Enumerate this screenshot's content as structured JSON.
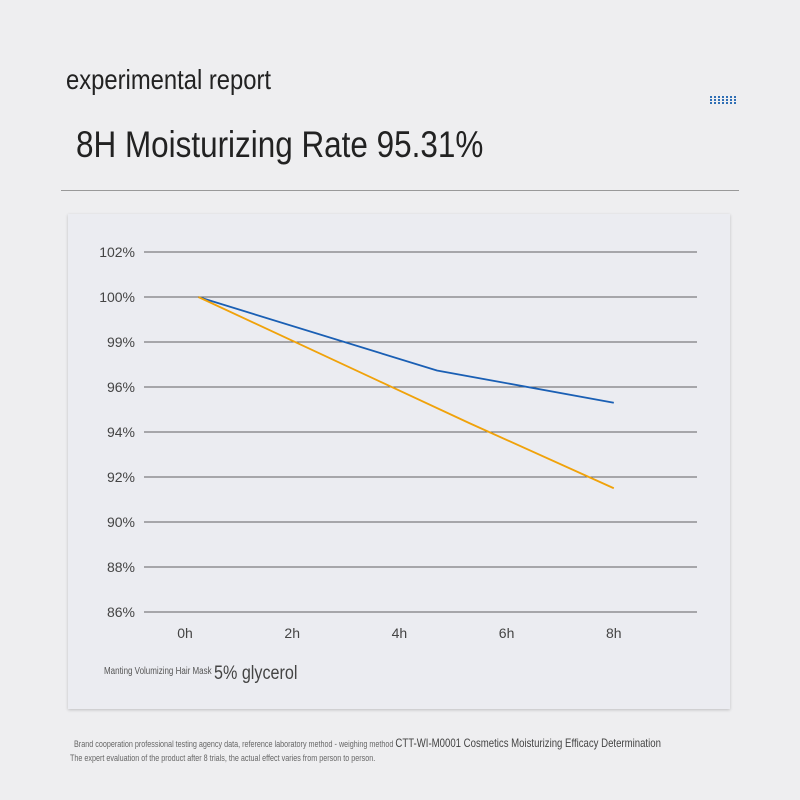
{
  "header": {
    "subtitle": "experimental report",
    "title": "8H Moisturizing Rate 95.31%"
  },
  "icon": "dotted-grid-icon",
  "chart_data": {
    "type": "line",
    "x_ticks": [
      "0h",
      "2h",
      "4h",
      "6h",
      "8h"
    ],
    "x_values": [
      0,
      2,
      4,
      6,
      8
    ],
    "y_ticks": [
      "102%",
      "100%",
      "99%",
      "96%",
      "94%",
      "92%",
      "90%",
      "88%",
      "86%"
    ],
    "y_tick_values": [
      102,
      100,
      99,
      96,
      94,
      92,
      90,
      88,
      86
    ],
    "grid": true,
    "series": [
      {
        "name": "Manting Volumizing Hair Mask",
        "color": "#1a5fb4",
        "points": [
          [
            0.25,
            100
          ],
          [
            4.7,
            97.1
          ],
          [
            8,
            95.3
          ]
        ]
      },
      {
        "name": "5% glycerol",
        "color": "#f0a20a",
        "points": [
          [
            0.25,
            100
          ],
          [
            5.3,
            94.4
          ],
          [
            8,
            91.5
          ]
        ]
      }
    ],
    "legend": [
      "Manting Volumizing Hair Mask",
      "5% glycerol"
    ]
  },
  "footer": {
    "note1": "Brand cooperation professional testing agency data, reference laboratory method - weighing method",
    "note1b": "CTT-WI-M0001 Cosmetics Moisturizing Efficacy Determination",
    "note2": "The expert evaluation of the product after 8 trials, the actual effect varies from person to person."
  }
}
